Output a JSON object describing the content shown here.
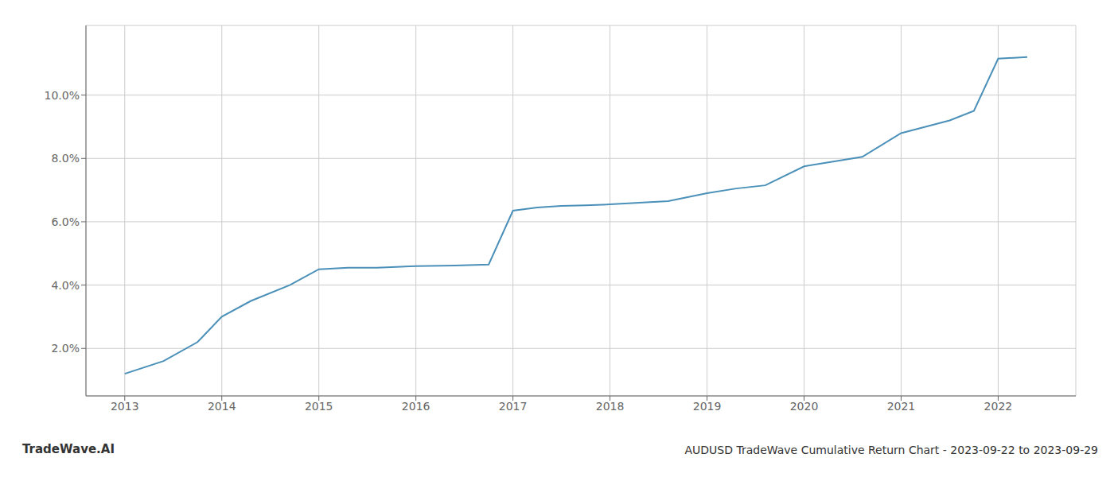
{
  "chart_data": {
    "type": "line",
    "title": "AUDUSD TradeWave Cumulative Return Chart - 2023-09-22 to 2023-09-29",
    "annotations": [
      "TradeWave.AI"
    ],
    "x": [
      2013.0,
      2013.4,
      2013.75,
      2014.0,
      2014.3,
      2014.7,
      2015.0,
      2015.3,
      2015.6,
      2016.0,
      2016.4,
      2016.75,
      2017.0,
      2017.25,
      2017.5,
      2017.75,
      2018.0,
      2018.3,
      2018.6,
      2019.0,
      2019.3,
      2019.6,
      2020.0,
      2020.3,
      2020.6,
      2021.0,
      2021.25,
      2021.5,
      2021.75,
      2022.0,
      2022.3
    ],
    "values": [
      1.2,
      1.6,
      2.2,
      3.0,
      3.5,
      4.0,
      4.5,
      4.55,
      4.55,
      4.6,
      4.62,
      4.65,
      6.35,
      6.45,
      6.5,
      6.52,
      6.55,
      6.6,
      6.65,
      6.9,
      7.05,
      7.15,
      7.75,
      7.9,
      8.05,
      8.8,
      9.0,
      9.2,
      9.5,
      11.15,
      11.2
    ],
    "color": "#4a90b8",
    "xlim": [
      2012.6,
      2022.8
    ],
    "ylim": [
      0.5,
      12.2
    ],
    "xticks": [
      2013,
      2014,
      2015,
      2016,
      2017,
      2018,
      2019,
      2020,
      2021,
      2022
    ],
    "yticks": [
      {
        "value": 2.0,
        "label": "2.0%"
      },
      {
        "value": 4.0,
        "label": "4.0%"
      },
      {
        "value": 6.0,
        "label": "6.0%"
      },
      {
        "value": 8.0,
        "label": "8.0%"
      },
      {
        "value": 10.0,
        "label": "10.0%"
      }
    ],
    "grid": true
  }
}
